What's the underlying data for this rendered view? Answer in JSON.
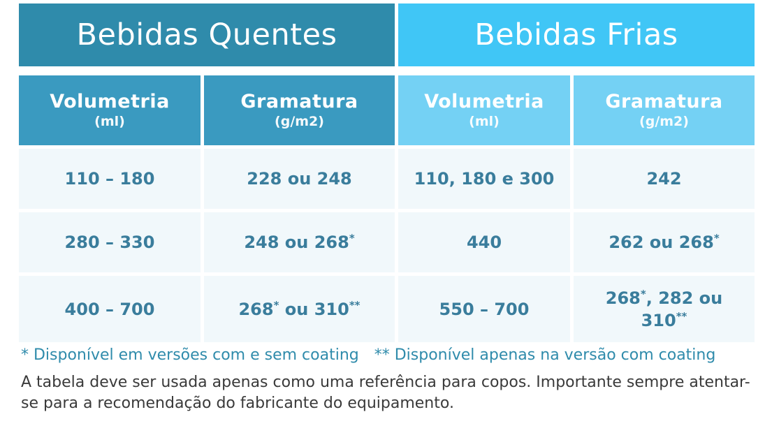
{
  "groups": {
    "hot": "Bebidas Quentes",
    "cold": "Bebidas Frias"
  },
  "columns": {
    "hot_volume": {
      "title": "Volumetria",
      "unit": "(ml)"
    },
    "hot_weight": {
      "title": "Gramatura",
      "unit": "(g/m2)"
    },
    "cold_volume": {
      "title": "Volumetria",
      "unit": "(ml)"
    },
    "cold_weight": {
      "title": "Gramatura",
      "unit": "(g/m2)"
    }
  },
  "rows": [
    {
      "hot_volume": "110 – 180",
      "hot_weight": {
        "text": "228 ou 248"
      },
      "cold_volume": "110, 180 e 300",
      "cold_weight": {
        "line1": "242",
        "line2": ""
      }
    },
    {
      "hot_volume": "280 – 330",
      "hot_weight": {
        "text": "248 ou 268",
        "sup": "*"
      },
      "cold_volume": "440",
      "cold_weight": {
        "line1": "262 ou 268",
        "sup1": "*"
      }
    },
    {
      "hot_volume": "400 – 700",
      "hot_weight": {
        "a": "268",
        "a_sup": "*",
        "b": " ou 310",
        "b_sup": "**"
      },
      "cold_volume": "550 – 700",
      "cold_weight": {
        "a": "268",
        "a_sup": "*",
        "b": ", 282 ou",
        "line2": "310",
        "line2_sup": "**"
      }
    }
  ],
  "footnotes": {
    "single": "* Disponível em versões com e sem coating",
    "double": "** Disponível apenas na versão com coating"
  },
  "note": "A tabela deve ser usada apenas como uma referência para copos. Importante sempre atentar-se para a recomendação do fabricante do equipamento.",
  "colors": {
    "hot_title": "#2f8bab",
    "cold_title": "#40c6f6",
    "hot_header": "#3a9ac0",
    "cold_header": "#74d1f4",
    "row_background": "#f1f8fb",
    "data_text": "#3a7d9c"
  }
}
